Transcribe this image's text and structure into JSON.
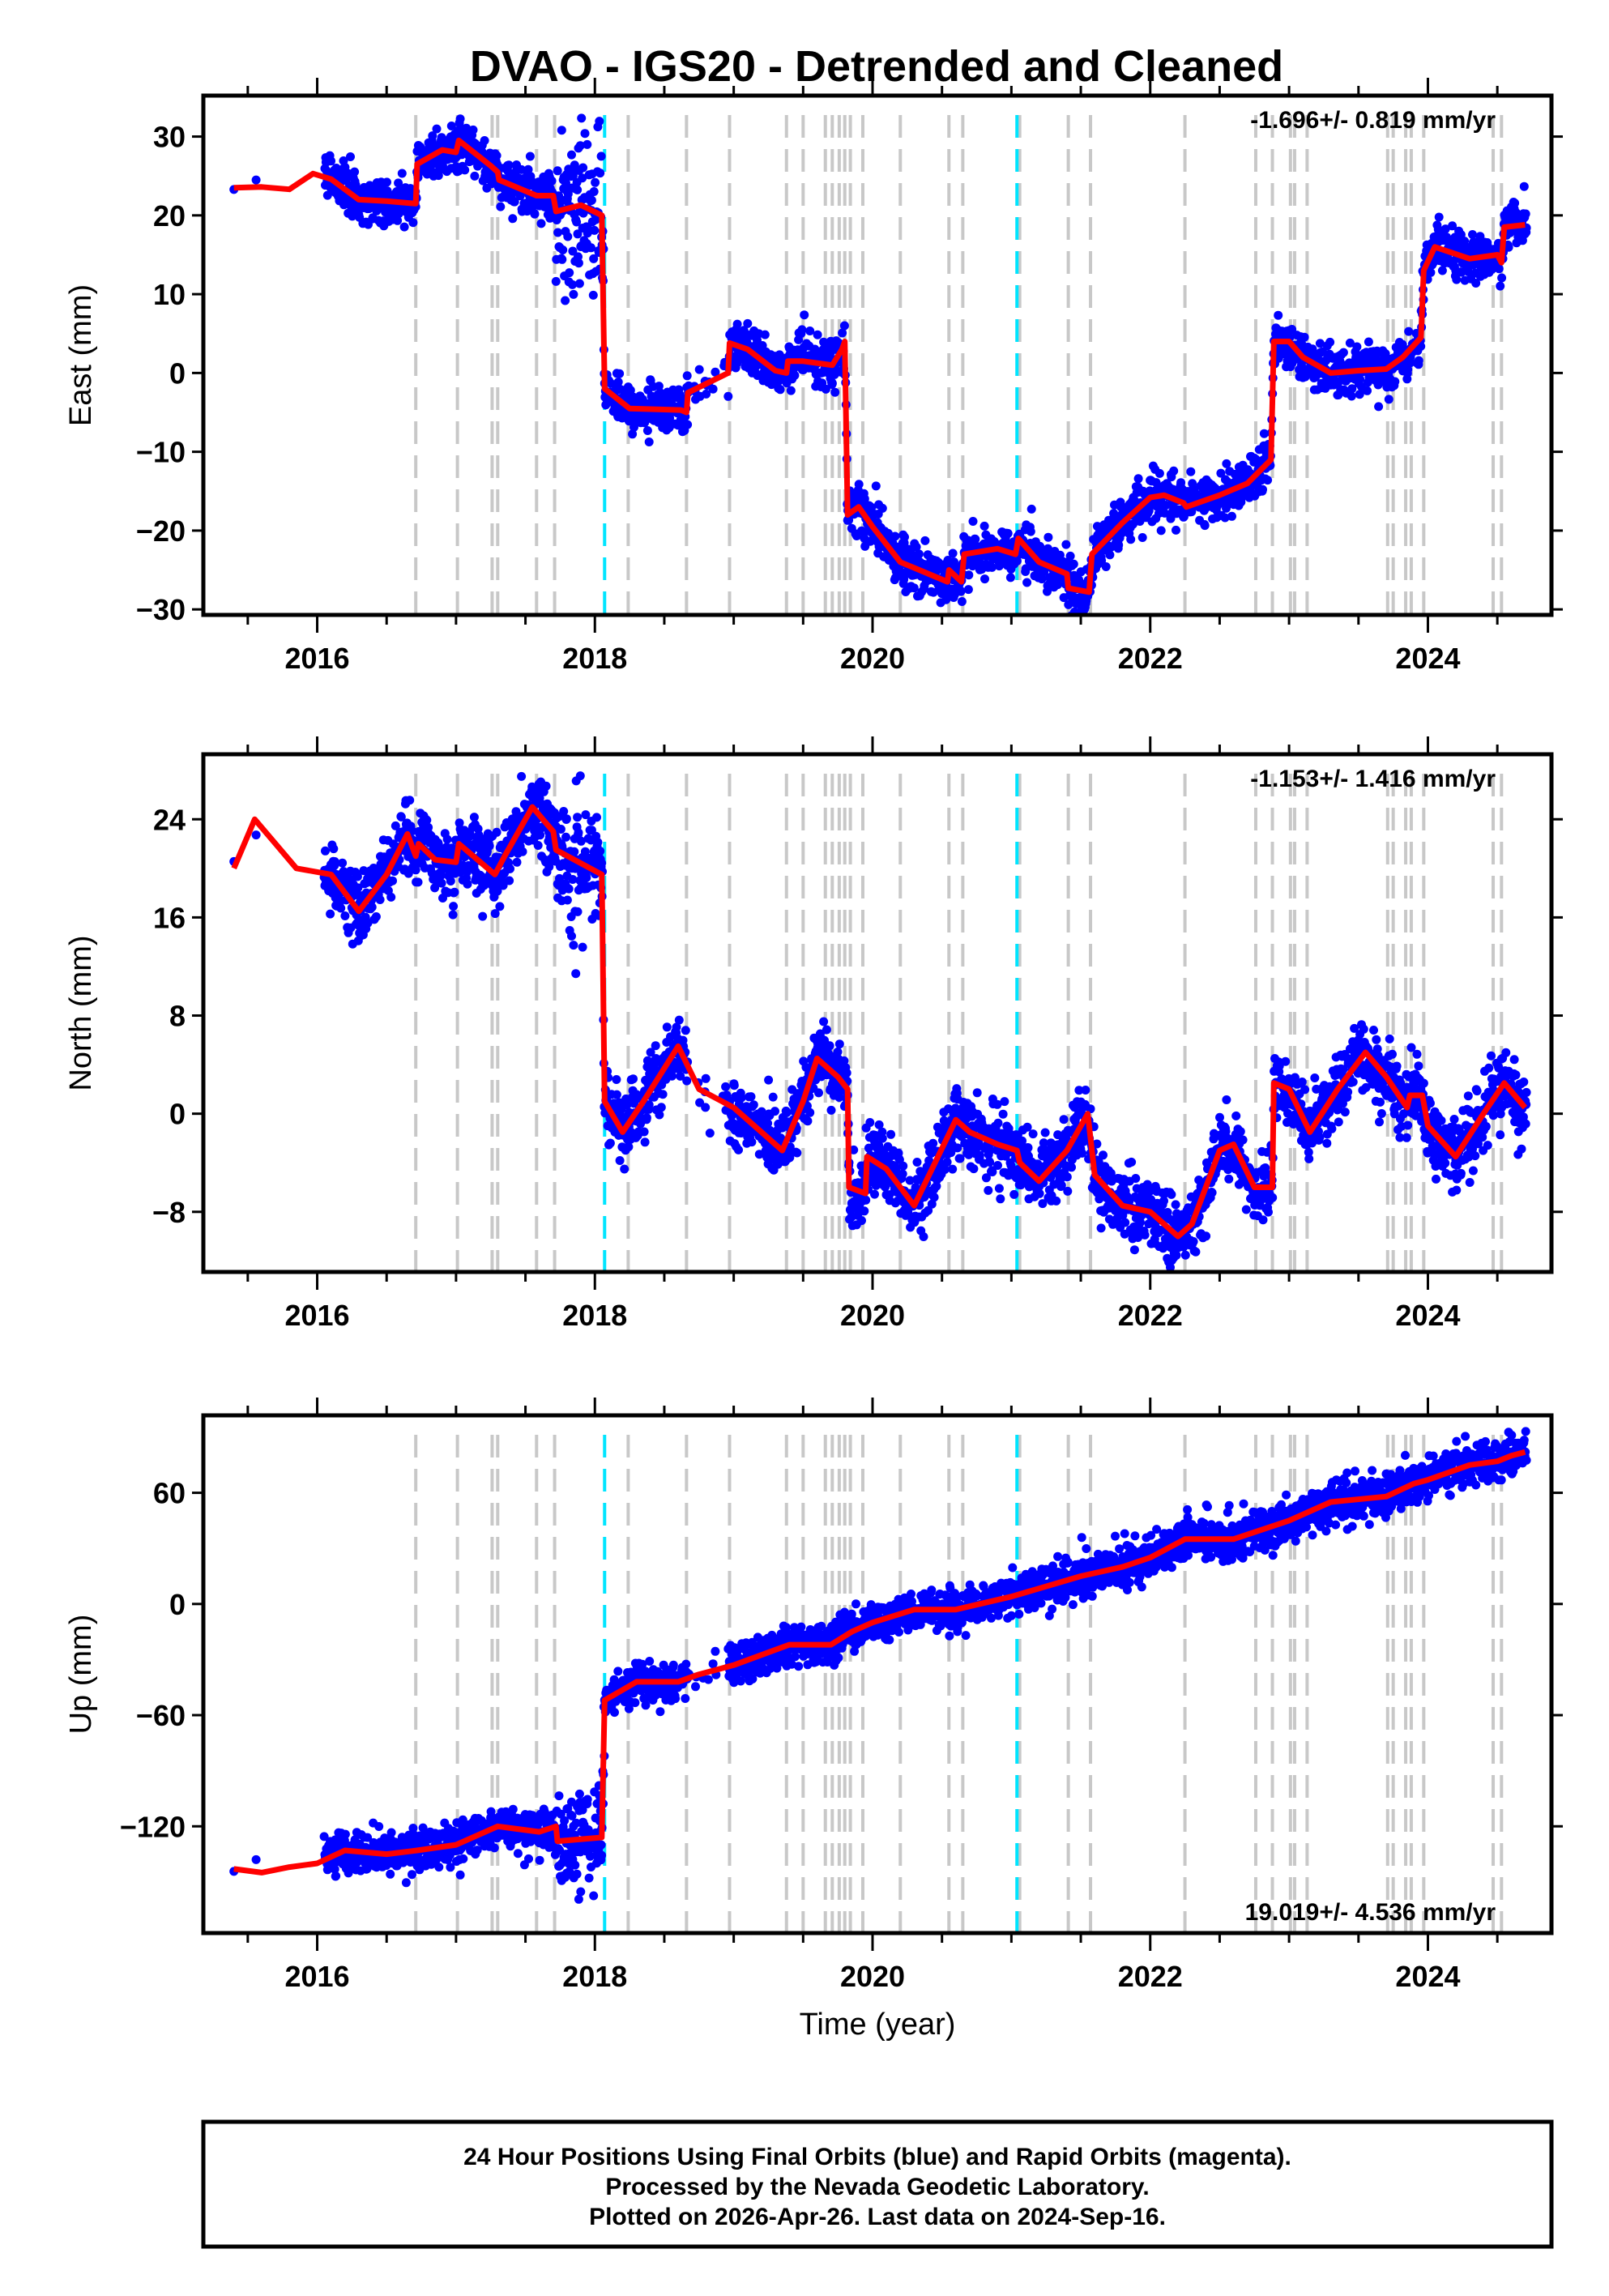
{
  "title": "DVAO - IGS20 - Detrended and Cleaned",
  "footer": {
    "line1": "24 Hour Positions Using Final Orbits (blue) and Rapid Orbits (magenta).",
    "line2": "Processed by the Nevada Geodetic Laboratory.",
    "line3": "Plotted on 2026-Apr-26. Last data on 2024-Sep-16."
  },
  "colors": {
    "points": "#0000ff",
    "model": "#ff0000",
    "event_line": "#c8c8c8",
    "antenna_line": "#00e5ff"
  },
  "chart_data": [
    {
      "type": "scatter",
      "name": "east",
      "ylabel": "East (mm)",
      "xlabel": "",
      "rate": "-1.696+/- 0.819 mm/yr",
      "rate_position": "top-right",
      "xlim": [
        2015.18,
        2024.89
      ],
      "ylim": [
        -30.7,
        35.2
      ],
      "xticks": [
        "2016",
        "2018",
        "2020",
        "2022",
        "2024"
      ],
      "yticks": [
        {
          "v": 30,
          "label": "30"
        },
        {
          "v": 20,
          "label": "20"
        },
        {
          "v": 10,
          "label": "10"
        },
        {
          "v": 0,
          "label": "0"
        },
        {
          "v": -10,
          "label": "−10"
        },
        {
          "v": -20,
          "label": "−20"
        },
        {
          "v": -30,
          "label": "−30"
        }
      ],
      "noise_sigma": 1.5,
      "noisy_interval": {
        "from": 2017.72,
        "to": 2018.07,
        "sigma": 5.5
      },
      "model": [
        [
          2015.4,
          23.5
        ],
        [
          2015.6,
          23.6
        ],
        [
          2015.8,
          23.3
        ],
        [
          2015.97,
          25.3
        ],
        [
          2016.1,
          24.6
        ],
        [
          2016.3,
          22
        ],
        [
          2016.5,
          21.8
        ],
        [
          2016.71,
          21.5
        ],
        [
          2016.72,
          26.5
        ],
        [
          2016.9,
          28.3
        ],
        [
          2017.0,
          28
        ],
        [
          2017.02,
          29.5
        ],
        [
          2017.25,
          26.3
        ],
        [
          2017.3,
          25.5
        ],
        [
          2017.31,
          24.5
        ],
        [
          2017.58,
          22.5
        ],
        [
          2017.7,
          22.5
        ],
        [
          2017.72,
          20.5
        ],
        [
          2017.9,
          21.3
        ],
        [
          2018.05,
          20
        ],
        [
          2018.07,
          -2
        ],
        [
          2018.25,
          -4.5
        ],
        [
          2018.62,
          -4.7
        ],
        [
          2018.66,
          -5
        ],
        [
          2018.67,
          -2.5
        ],
        [
          2018.96,
          0
        ],
        [
          2018.97,
          3.8
        ],
        [
          2019.1,
          3
        ],
        [
          2019.3,
          0.3
        ],
        [
          2019.38,
          0
        ],
        [
          2019.39,
          1.5
        ],
        [
          2019.5,
          1.5
        ],
        [
          2019.71,
          1
        ],
        [
          2019.78,
          3
        ],
        [
          2019.8,
          4
        ],
        [
          2019.82,
          -18
        ],
        [
          2019.9,
          -17
        ],
        [
          2020.0,
          -19.5
        ],
        [
          2020.2,
          -24
        ],
        [
          2020.54,
          -26.5
        ],
        [
          2020.55,
          -25
        ],
        [
          2020.64,
          -26.5
        ],
        [
          2020.66,
          -23
        ],
        [
          2020.9,
          -22.3
        ],
        [
          2021.03,
          -23
        ],
        [
          2021.05,
          -21
        ],
        [
          2021.2,
          -24
        ],
        [
          2021.4,
          -25.5
        ],
        [
          2021.41,
          -27.3
        ],
        [
          2021.56,
          -27.8
        ],
        [
          2021.58,
          -23
        ],
        [
          2021.8,
          -19
        ],
        [
          2022.0,
          -15.8
        ],
        [
          2022.1,
          -15.5
        ],
        [
          2022.24,
          -16.5
        ],
        [
          2022.26,
          -17
        ],
        [
          2022.5,
          -15.5
        ],
        [
          2022.7,
          -14
        ],
        [
          2022.87,
          -11
        ],
        [
          2022.89,
          4
        ],
        [
          2023.0,
          4
        ],
        [
          2023.1,
          2
        ],
        [
          2023.3,
          0
        ],
        [
          2023.5,
          0.3
        ],
        [
          2023.7,
          0.5
        ],
        [
          2023.82,
          2
        ],
        [
          2023.95,
          4.5
        ],
        [
          2023.97,
          13
        ],
        [
          2024.05,
          16
        ],
        [
          2024.3,
          14.5
        ],
        [
          2024.5,
          15
        ],
        [
          2024.53,
          14
        ],
        [
          2024.55,
          18.5
        ],
        [
          2024.7,
          18.8
        ]
      ]
    },
    {
      "type": "scatter",
      "name": "north",
      "ylabel": "North (mm)",
      "xlabel": "",
      "rate": "-1.153+/- 1.416 mm/yr",
      "rate_position": "top-right",
      "xlim": [
        2015.18,
        2024.89
      ],
      "ylim": [
        -12.9,
        29.3
      ],
      "xticks": [
        "2016",
        "2018",
        "2020",
        "2022",
        "2024"
      ],
      "yticks": [
        {
          "v": 24,
          "label": "24"
        },
        {
          "v": 16,
          "label": "16"
        },
        {
          "v": 8,
          "label": "8"
        },
        {
          "v": 0,
          "label": "0"
        },
        {
          "v": -8,
          "label": "−8"
        }
      ],
      "noise_sigma": 1.4,
      "noisy_interval": {
        "from": 2017.72,
        "to": 2018.07,
        "sigma": 2.8
      },
      "model": [
        [
          2015.4,
          20
        ],
        [
          2015.55,
          24
        ],
        [
          2015.7,
          22
        ],
        [
          2015.85,
          20
        ],
        [
          2016.1,
          19.5
        ],
        [
          2016.3,
          16.5
        ],
        [
          2016.5,
          19.5
        ],
        [
          2016.65,
          22.8
        ],
        [
          2016.71,
          21
        ],
        [
          2016.73,
          22
        ],
        [
          2016.85,
          20.7
        ],
        [
          2017.0,
          20.5
        ],
        [
          2017.02,
          22
        ],
        [
          2017.28,
          19.5
        ],
        [
          2017.35,
          21
        ],
        [
          2017.55,
          25
        ],
        [
          2017.7,
          23
        ],
        [
          2017.72,
          21.5
        ],
        [
          2018.05,
          19.5
        ],
        [
          2018.07,
          1
        ],
        [
          2018.2,
          -1.5
        ],
        [
          2018.35,
          1
        ],
        [
          2018.6,
          5.5
        ],
        [
          2018.75,
          2
        ],
        [
          2019.0,
          0.5
        ],
        [
          2019.2,
          -1.5
        ],
        [
          2019.35,
          -3
        ],
        [
          2019.5,
          1
        ],
        [
          2019.6,
          4.5
        ],
        [
          2019.75,
          3
        ],
        [
          2019.82,
          2
        ],
        [
          2019.83,
          -6
        ],
        [
          2019.95,
          -6.5
        ],
        [
          2019.96,
          -3.5
        ],
        [
          2020.1,
          -4.5
        ],
        [
          2020.3,
          -7.5
        ],
        [
          2020.6,
          -0.5
        ],
        [
          2020.7,
          -1.5
        ],
        [
          2020.9,
          -2.5
        ],
        [
          2021.04,
          -3
        ],
        [
          2021.06,
          -4
        ],
        [
          2021.2,
          -5.5
        ],
        [
          2021.4,
          -3
        ],
        [
          2021.55,
          0
        ],
        [
          2021.6,
          -5
        ],
        [
          2021.8,
          -7.5
        ],
        [
          2022.0,
          -8
        ],
        [
          2022.2,
          -10
        ],
        [
          2022.3,
          -9
        ],
        [
          2022.5,
          -3
        ],
        [
          2022.6,
          -2.5
        ],
        [
          2022.75,
          -6
        ],
        [
          2022.88,
          -6
        ],
        [
          2022.89,
          2.5
        ],
        [
          2023.0,
          2
        ],
        [
          2023.15,
          -1.5
        ],
        [
          2023.35,
          2
        ],
        [
          2023.55,
          5
        ],
        [
          2023.7,
          3
        ],
        [
          2023.85,
          0.5
        ],
        [
          2023.87,
          1.5
        ],
        [
          2023.96,
          1.5
        ],
        [
          2024.0,
          -1
        ],
        [
          2024.2,
          -3.5
        ],
        [
          2024.4,
          0
        ],
        [
          2024.55,
          2.5
        ],
        [
          2024.7,
          0.5
        ]
      ]
    },
    {
      "type": "scatter",
      "name": "up",
      "ylabel": "Up (mm)",
      "xlabel": "Time (year)",
      "rate": "19.019+/- 4.536 mm/yr",
      "rate_position": "bottom-right",
      "xlim": [
        2015.18,
        2024.89
      ],
      "ylim": [
        -177.6,
        101.8
      ],
      "xticks": [
        "2016",
        "2018",
        "2020",
        "2022",
        "2024"
      ],
      "yticks": [
        {
          "v": 60,
          "label": "60"
        },
        {
          "v": 0,
          "label": "0"
        },
        {
          "v": -60,
          "label": "−60"
        },
        {
          "v": -120,
          "label": "−120"
        }
      ],
      "noise_sigma": 5.5,
      "noisy_interval": {
        "from": 2017.72,
        "to": 2018.07,
        "sigma": 13
      },
      "model": [
        [
          2015.4,
          -143
        ],
        [
          2015.6,
          -145
        ],
        [
          2015.8,
          -142
        ],
        [
          2016.0,
          -140
        ],
        [
          2016.2,
          -133
        ],
        [
          2016.5,
          -135
        ],
        [
          2016.72,
          -133
        ],
        [
          2017.0,
          -130
        ],
        [
          2017.3,
          -120
        ],
        [
          2017.6,
          -123
        ],
        [
          2017.72,
          -120
        ],
        [
          2017.73,
          -128
        ],
        [
          2018.05,
          -126
        ],
        [
          2018.07,
          -52
        ],
        [
          2018.3,
          -42
        ],
        [
          2018.6,
          -42
        ],
        [
          2018.75,
          -38
        ],
        [
          2019.0,
          -33
        ],
        [
          2019.4,
          -22
        ],
        [
          2019.7,
          -22
        ],
        [
          2019.85,
          -15
        ],
        [
          2020.0,
          -10
        ],
        [
          2020.3,
          -3
        ],
        [
          2020.6,
          -3
        ],
        [
          2021.0,
          4
        ],
        [
          2021.5,
          15
        ],
        [
          2021.8,
          20
        ],
        [
          2022.0,
          25
        ],
        [
          2022.25,
          35
        ],
        [
          2022.6,
          35
        ],
        [
          2022.88,
          42
        ],
        [
          2023.0,
          45
        ],
        [
          2023.3,
          55
        ],
        [
          2023.7,
          58
        ],
        [
          2023.9,
          65
        ],
        [
          2024.0,
          67
        ],
        [
          2024.3,
          75
        ],
        [
          2024.5,
          77
        ],
        [
          2024.6,
          80
        ],
        [
          2024.7,
          82
        ]
      ]
    }
  ],
  "event_lines": [
    2016.71,
    2017.01,
    2017.26,
    2017.3,
    2017.58,
    2017.71,
    2018.24,
    2018.66,
    2018.97,
    2019.38,
    2019.5,
    2019.66,
    2019.71,
    2019.76,
    2019.8,
    2019.84,
    2019.93,
    2020.2,
    2020.55,
    2020.65,
    2021.06,
    2021.41,
    2021.57,
    2022.25,
    2022.76,
    2022.88,
    2023.01,
    2023.04,
    2023.13,
    2023.71,
    2023.75,
    2023.84,
    2023.88,
    2023.97,
    2024.47,
    2024.53
  ],
  "antenna_lines": [
    2018.07,
    2021.04
  ]
}
